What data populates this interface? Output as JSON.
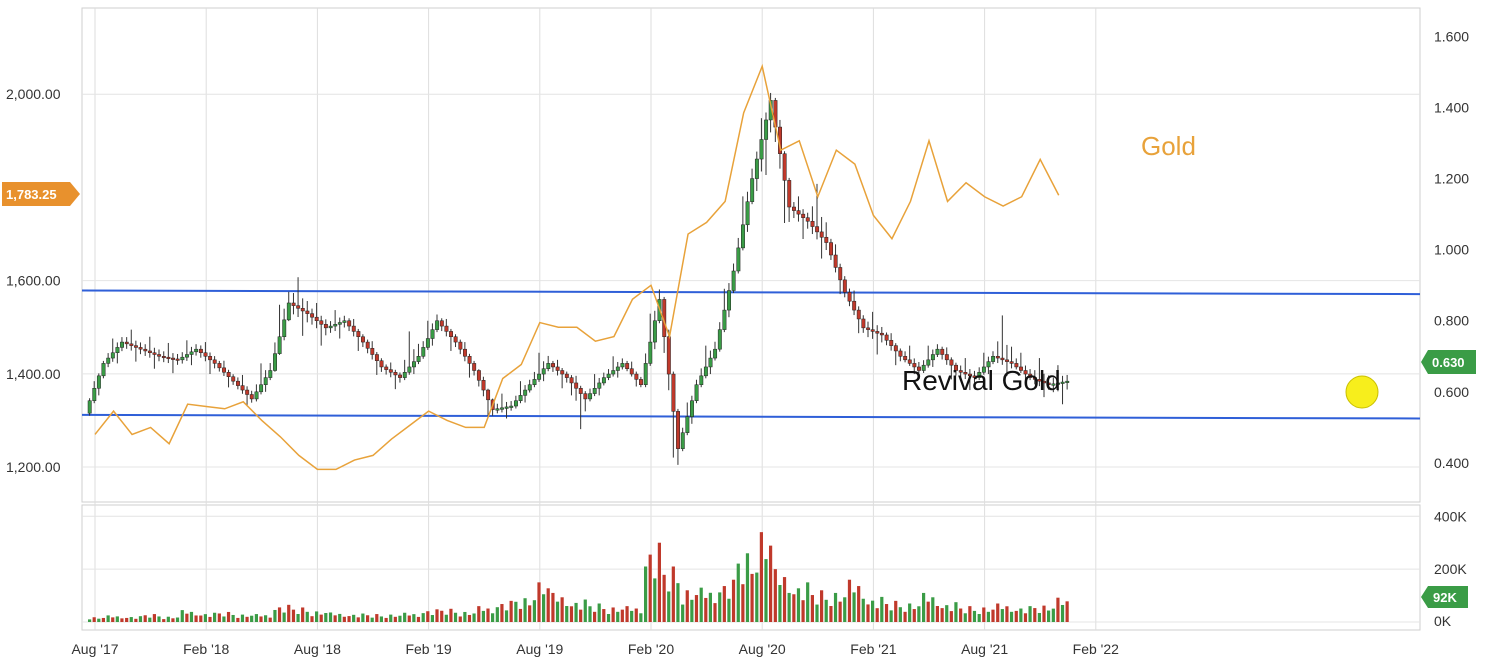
{
  "chart_data": {
    "type": "candlestick",
    "x_ticks": [
      "Aug '17",
      "Feb '18",
      "Aug '18",
      "Feb '19",
      "Aug '19",
      "Feb '20",
      "Aug '20",
      "Feb '21",
      "Aug '21",
      "Feb '22"
    ],
    "left_axis": {
      "series": "Gold",
      "ticks": [
        "1,200.00",
        "1,400.00",
        "1,600.00",
        "2,000.00"
      ],
      "ylim": [
        1125,
        2185
      ]
    },
    "right_axis": {
      "series": "Revival Gold",
      "ticks": [
        "0.400",
        "0.600",
        "0.800",
        "1.000",
        "1.200",
        "1.400",
        "1.600"
      ],
      "ylim": [
        0.29,
        1.68
      ]
    },
    "volume_axis": {
      "ticks": [
        "0K",
        "200K",
        "400K"
      ],
      "ylim": [
        0,
        420
      ]
    },
    "labels": {
      "gold": "Gold",
      "stock": "Revival Gold"
    },
    "last_values": {
      "gold": "1,783.25",
      "stock": "0.630",
      "volume": "92K"
    },
    "trendlines": [
      {
        "name": "upper",
        "start": [
          "2017-08",
          0.885
        ],
        "end": [
          "2021-12",
          0.875
        ]
      },
      {
        "name": "lower",
        "start": [
          "2017-08",
          0.535
        ],
        "end": [
          "2021-12",
          0.525
        ]
      }
    ],
    "gold_line": [
      [
        "2017-08",
        1270
      ],
      [
        "2017-09",
        1320
      ],
      [
        "2017-10",
        1270
      ],
      [
        "2017-11",
        1285
      ],
      [
        "2017-12",
        1250
      ],
      [
        "2018-01",
        1335
      ],
      [
        "2018-02",
        1330
      ],
      [
        "2018-03",
        1325
      ],
      [
        "2018-04",
        1340
      ],
      [
        "2018-05",
        1300
      ],
      [
        "2018-06",
        1265
      ],
      [
        "2018-07",
        1225
      ],
      [
        "2018-08",
        1195
      ],
      [
        "2018-09",
        1195
      ],
      [
        "2018-10",
        1215
      ],
      [
        "2018-11",
        1225
      ],
      [
        "2018-12",
        1260
      ],
      [
        "2019-01",
        1290
      ],
      [
        "2019-02",
        1320
      ],
      [
        "2019-03",
        1300
      ],
      [
        "2019-04",
        1285
      ],
      [
        "2019-05",
        1285
      ],
      [
        "2019-06",
        1390
      ],
      [
        "2019-07",
        1420
      ],
      [
        "2019-08",
        1510
      ],
      [
        "2019-09",
        1500
      ],
      [
        "2019-10",
        1500
      ],
      [
        "2019-11",
        1470
      ],
      [
        "2019-12",
        1480
      ],
      [
        "2020-01",
        1560
      ],
      [
        "2020-02",
        1590
      ],
      [
        "2020-03",
        1480
      ],
      [
        "2020-04",
        1700
      ],
      [
        "2020-05",
        1725
      ],
      [
        "2020-06",
        1770
      ],
      [
        "2020-07",
        1960
      ],
      [
        "2020-08",
        2060
      ],
      [
        "2020-09",
        1880
      ],
      [
        "2020-10",
        1900
      ],
      [
        "2020-11",
        1780
      ],
      [
        "2020-12",
        1880
      ],
      [
        "2021-01",
        1850
      ],
      [
        "2021-02",
        1740
      ],
      [
        "2021-03",
        1690
      ],
      [
        "2021-04",
        1770
      ],
      [
        "2021-05",
        1900
      ],
      [
        "2021-06",
        1770
      ],
      [
        "2021-07",
        1810
      ],
      [
        "2021-08",
        1780
      ],
      [
        "2021-09",
        1760
      ],
      [
        "2021-10",
        1780
      ],
      [
        "2021-11",
        1860
      ],
      [
        "2021-12",
        1783.25
      ]
    ],
    "candles": [
      [
        "2017-08",
        0.54,
        0.68,
        0.52,
        0.7
      ],
      [
        "2017-09",
        0.68,
        0.74,
        0.65,
        0.78
      ],
      [
        "2017-10",
        0.74,
        0.72,
        0.68,
        0.78
      ],
      [
        "2017-11",
        0.72,
        0.7,
        0.66,
        0.76
      ],
      [
        "2017-12",
        0.7,
        0.69,
        0.65,
        0.74
      ],
      [
        "2018-01",
        0.69,
        0.72,
        0.66,
        0.76
      ],
      [
        "2018-02",
        0.72,
        0.68,
        0.64,
        0.75
      ],
      [
        "2018-03",
        0.68,
        0.63,
        0.6,
        0.7
      ],
      [
        "2018-04",
        0.63,
        0.58,
        0.55,
        0.66
      ],
      [
        "2018-05",
        0.58,
        0.66,
        0.56,
        0.72
      ],
      [
        "2018-06",
        0.66,
        0.85,
        0.65,
        0.94
      ],
      [
        "2018-07",
        0.85,
        0.82,
        0.75,
        0.93
      ],
      [
        "2018-08",
        0.82,
        0.78,
        0.72,
        0.86
      ],
      [
        "2018-09",
        0.78,
        0.8,
        0.74,
        0.84
      ],
      [
        "2018-10",
        0.8,
        0.74,
        0.7,
        0.82
      ],
      [
        "2018-11",
        0.74,
        0.67,
        0.63,
        0.76
      ],
      [
        "2018-12",
        0.67,
        0.64,
        0.6,
        0.69
      ],
      [
        "2019-01",
        0.64,
        0.7,
        0.62,
        0.8
      ],
      [
        "2019-02",
        0.7,
        0.8,
        0.68,
        0.85
      ],
      [
        "2019-03",
        0.8,
        0.74,
        0.7,
        0.82
      ],
      [
        "2019-04",
        0.74,
        0.66,
        0.62,
        0.76
      ],
      [
        "2019-05",
        0.66,
        0.55,
        0.5,
        0.67
      ],
      [
        "2019-06",
        0.55,
        0.56,
        0.52,
        0.6
      ],
      [
        "2019-07",
        0.56,
        0.62,
        0.54,
        0.66
      ],
      [
        "2019-08",
        0.62,
        0.68,
        0.6,
        0.74
      ],
      [
        "2019-09",
        0.68,
        0.64,
        0.6,
        0.7
      ],
      [
        "2019-10",
        0.64,
        0.58,
        0.48,
        0.66
      ],
      [
        "2019-11",
        0.58,
        0.64,
        0.56,
        0.68
      ],
      [
        "2019-12",
        0.64,
        0.68,
        0.62,
        0.72
      ],
      [
        "2020-01",
        0.68,
        0.62,
        0.6,
        0.7
      ],
      [
        "2020-02",
        0.62,
        0.86,
        0.6,
        0.94
      ],
      [
        "2020-03",
        0.86,
        0.44,
        0.31,
        0.88
      ],
      [
        "2020-04",
        0.44,
        0.62,
        0.42,
        0.66
      ],
      [
        "2020-05",
        0.62,
        0.72,
        0.6,
        0.78
      ],
      [
        "2020-06",
        0.72,
        0.94,
        0.7,
        1.0
      ],
      [
        "2020-07",
        0.94,
        1.2,
        0.92,
        1.28
      ],
      [
        "2020-08",
        1.2,
        1.42,
        1.1,
        1.48
      ],
      [
        "2020-09",
        1.42,
        1.12,
        1.0,
        1.44
      ],
      [
        "2020-10",
        1.12,
        1.08,
        1.02,
        1.16
      ],
      [
        "2020-11",
        1.08,
        1.02,
        0.96,
        1.2
      ],
      [
        "2020-12",
        1.02,
        0.88,
        0.84,
        1.05
      ],
      [
        "2021-01",
        0.88,
        0.78,
        0.74,
        0.91
      ],
      [
        "2021-02",
        0.78,
        0.76,
        0.7,
        0.83
      ],
      [
        "2021-03",
        0.76,
        0.7,
        0.66,
        0.78
      ],
      [
        "2021-04",
        0.7,
        0.66,
        0.64,
        0.74
      ],
      [
        "2021-05",
        0.66,
        0.72,
        0.64,
        0.76
      ],
      [
        "2021-06",
        0.72,
        0.66,
        0.62,
        0.74
      ],
      [
        "2021-07",
        0.66,
        0.64,
        0.6,
        0.7
      ],
      [
        "2021-08",
        0.64,
        0.7,
        0.62,
        0.74
      ],
      [
        "2021-09",
        0.7,
        0.68,
        0.64,
        0.82
      ],
      [
        "2021-10",
        0.68,
        0.64,
        0.62,
        0.72
      ],
      [
        "2021-11",
        0.64,
        0.62,
        0.58,
        0.7
      ],
      [
        "2021-12",
        0.62,
        0.63,
        0.56,
        0.68
      ]
    ],
    "volume": [
      [
        "2017-08",
        18
      ],
      [
        "2017-09",
        25
      ],
      [
        "2017-10",
        22
      ],
      [
        "2017-11",
        30
      ],
      [
        "2017-12",
        20
      ],
      [
        "2018-01",
        45
      ],
      [
        "2018-02",
        35
      ],
      [
        "2018-03",
        38
      ],
      [
        "2018-04",
        28
      ],
      [
        "2018-05",
        30
      ],
      [
        "2018-06",
        65
      ],
      [
        "2018-07",
        55
      ],
      [
        "2018-08",
        40
      ],
      [
        "2018-09",
        36
      ],
      [
        "2018-10",
        32
      ],
      [
        "2018-11",
        30
      ],
      [
        "2018-12",
        28
      ],
      [
        "2019-01",
        35
      ],
      [
        "2019-02",
        48
      ],
      [
        "2019-03",
        50
      ],
      [
        "2019-04",
        38
      ],
      [
        "2019-05",
        60
      ],
      [
        "2019-06",
        80
      ],
      [
        "2019-07",
        90
      ],
      [
        "2019-08",
        150
      ],
      [
        "2019-09",
        110
      ],
      [
        "2019-10",
        85
      ],
      [
        "2019-11",
        70
      ],
      [
        "2019-12",
        55
      ],
      [
        "2020-01",
        60
      ],
      [
        "2020-02",
        300
      ],
      [
        "2020-03",
        210
      ],
      [
        "2020-04",
        120
      ],
      [
        "2020-05",
        130
      ],
      [
        "2020-06",
        160
      ],
      [
        "2020-07",
        260
      ],
      [
        "2020-08",
        340
      ],
      [
        "2020-09",
        200
      ],
      [
        "2020-10",
        150
      ],
      [
        "2020-11",
        120
      ],
      [
        "2020-12",
        110
      ],
      [
        "2021-01",
        160
      ],
      [
        "2021-02",
        95
      ],
      [
        "2021-03",
        80
      ],
      [
        "2021-04",
        70
      ],
      [
        "2021-05",
        110
      ],
      [
        "2021-06",
        75
      ],
      [
        "2021-07",
        60
      ],
      [
        "2021-08",
        55
      ],
      [
        "2021-09",
        70
      ],
      [
        "2021-10",
        60
      ],
      [
        "2021-11",
        62
      ],
      [
        "2021-12",
        92
      ]
    ],
    "colors": {
      "up": "#3a9c46",
      "down": "#c0392b",
      "gold_line": "#e8a23a",
      "trendline": "#2f5fd8",
      "badge_gold": "#e8912d",
      "badge_stock": "#3a9c46",
      "highlight": "#f7ee1c"
    }
  }
}
